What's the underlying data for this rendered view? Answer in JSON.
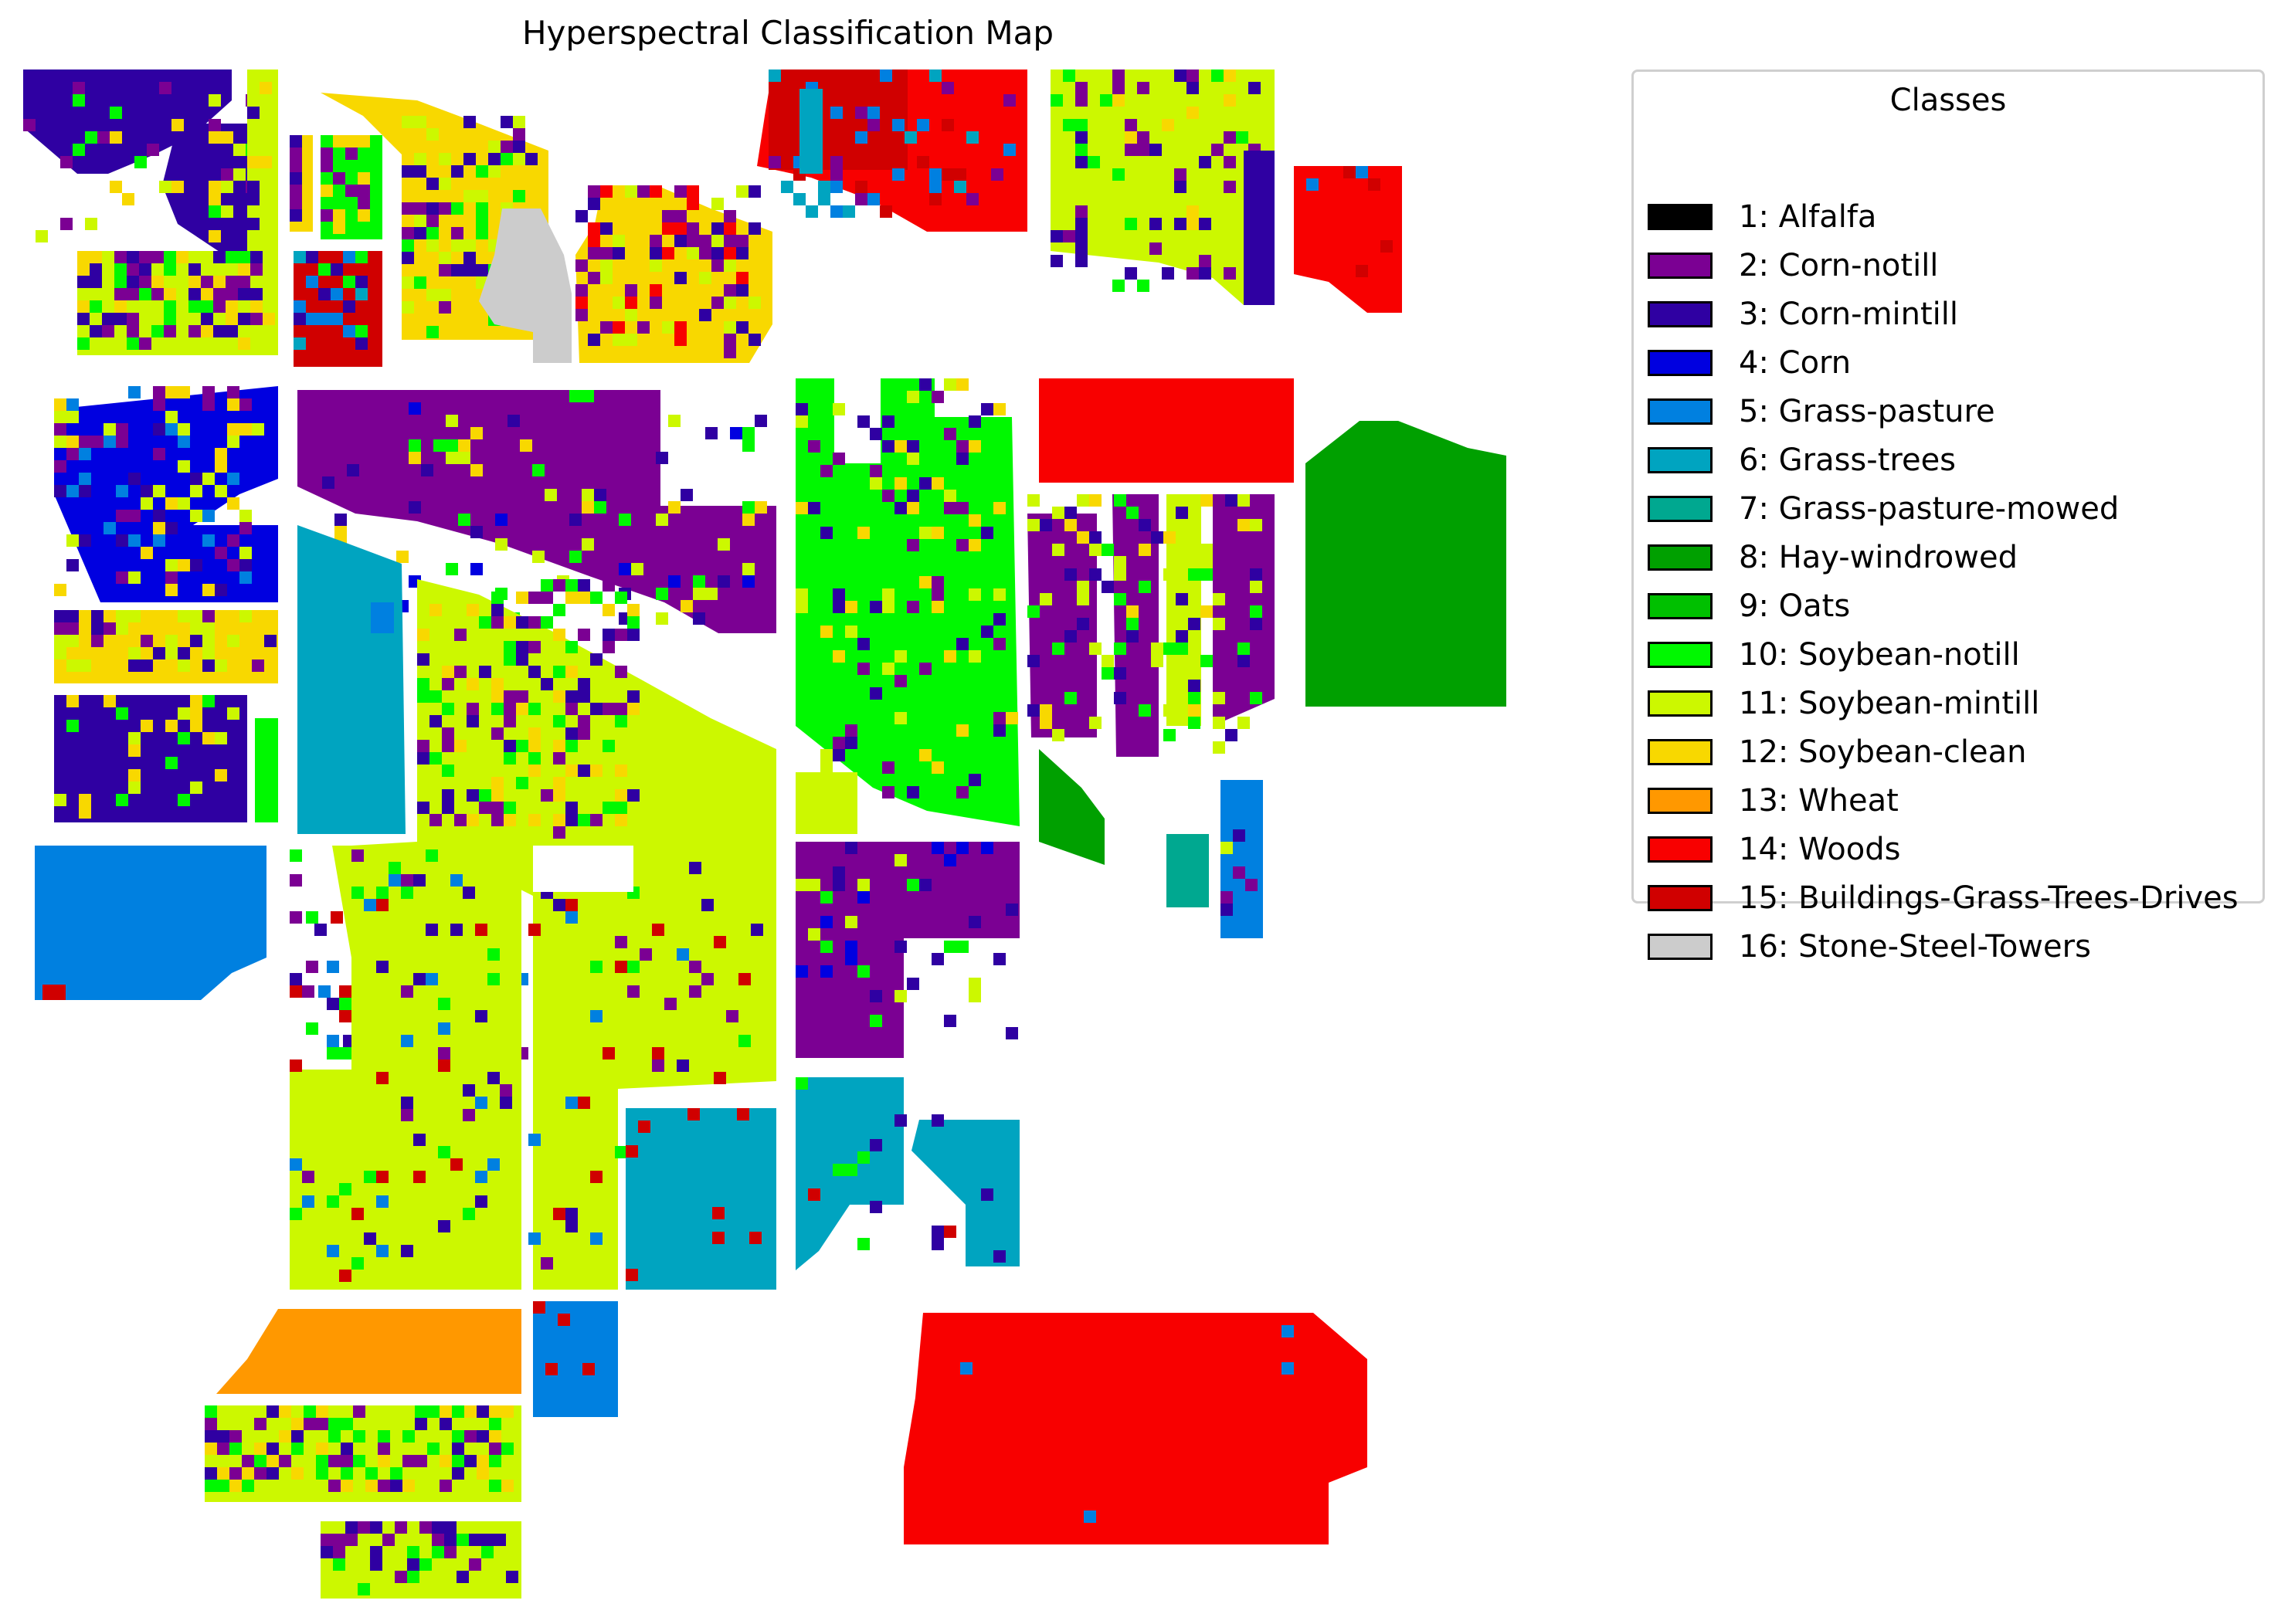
{
  "title": "Hyperspectral Classification Map",
  "legend": {
    "title": "Classes",
    "placement": "upper-right",
    "items": [
      {
        "label": "1: Alfalfa",
        "color": "#000000"
      },
      {
        "label": "2: Corn-notill",
        "color": "#7b0093"
      },
      {
        "label": "3: Corn-mintill",
        "color": "#2f00a2"
      },
      {
        "label": "4: Corn",
        "color": "#0000e0"
      },
      {
        "label": "5: Grass-pasture",
        "color": "#0080e0"
      },
      {
        "label": "6: Grass-trees",
        "color": "#00a4c0"
      },
      {
        "label": "7: Grass-pasture-mowed",
        "color": "#00a890"
      },
      {
        "label": "8: Hay-windrowed",
        "color": "#00a000"
      },
      {
        "label": "9: Oats",
        "color": "#00c000"
      },
      {
        "label": "10: Soybean-notill",
        "color": "#00f800"
      },
      {
        "label": "11: Soybean-mintill",
        "color": "#ccf800"
      },
      {
        "label": "12: Soybean-clean",
        "color": "#f8d800"
      },
      {
        "label": "13: Wheat",
        "color": "#ff9800"
      },
      {
        "label": "14: Woods",
        "color": "#f80000"
      },
      {
        "label": "15: Buildings-Grass-Trees-Drives",
        "color": "#d00000"
      },
      {
        "label": "16: Stone-Steel-Towers",
        "color": "#cccccc"
      }
    ]
  },
  "map_data": {
    "type": "classification-map",
    "grid": "off",
    "axes": "off",
    "field_classes": [
      "3: Corn-mintill",
      "11: Soybean-mintill",
      "12: Soybean-clean",
      "10: Soybean-notill",
      "15: Buildings-Grass-Trees-Drives",
      "16: Stone-Steel-Towers",
      "14: Woods",
      "2: Corn-notill",
      "4: Corn",
      "6: Grass-trees",
      "5: Grass-pasture",
      "8: Hay-windrowed",
      "7: Grass-pasture-mowed",
      "13: Wheat"
    ]
  }
}
